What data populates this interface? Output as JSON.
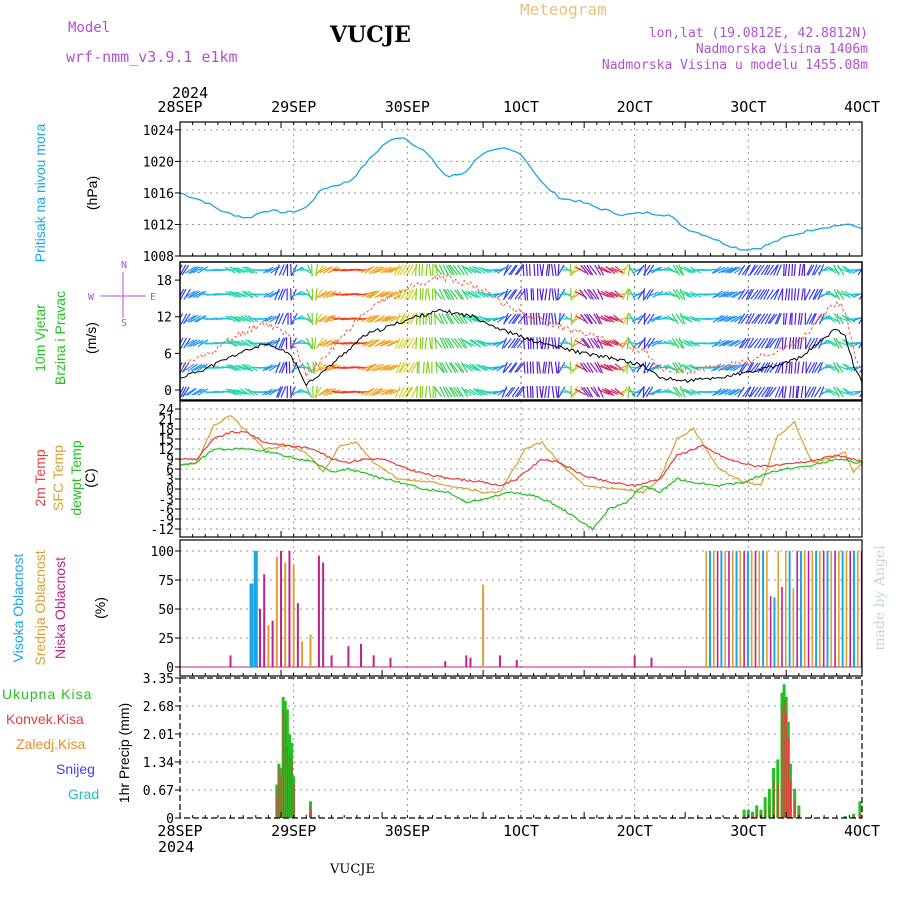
{
  "header": {
    "model_label": "Model",
    "model_name": "wrf-nmm_v3.9.1  e1km",
    "title": "VUCJE",
    "meteogram": "Meteogram",
    "lonlat": "lon,lat (19.0812E, 42.8812N)",
    "altitude": "Nadmorska Visina 1406m",
    "model_altitude": "Nadmorska Visina u modelu 1455.08m"
  },
  "footer": {
    "station": "VUCJE"
  },
  "credit": "made by Angel",
  "time_axis": {
    "year": "2024",
    "labels": [
      "28SEP",
      "29SEP",
      "30SEP",
      "1OCT",
      "2OCT",
      "3OCT",
      "4OCT"
    ]
  },
  "colors": {
    "pressure": "#1aa7e6",
    "temp2m": "#e83c3c",
    "sfc": "#d8a030",
    "dewpt": "#22c022",
    "high_cloud": "#1aa7e6",
    "mid_cloud": "#d8a030",
    "low_cloud": "#c0208c",
    "total_rain": "#22c022",
    "conv_rain": "#e83c3c",
    "frozen": "#e88a30",
    "snow": "#4040e0",
    "hail": "#20c0c0",
    "meteogram_title": "#e8c080",
    "model_text": "#b050d0"
  },
  "panels": {
    "pressure": {
      "ylabel": "Pritisak na nivou mora",
      "unit": "(hPa)",
      "ticks": [
        "1008",
        "1012",
        "1016",
        "1020",
        "1024"
      ]
    },
    "wind": {
      "ylabel1": "10m Vjetar",
      "ylabel2": "Brzina i Pravac",
      "unit": "(m/s)",
      "ticks": [
        "0",
        "6",
        "12",
        "18"
      ],
      "compass_w": "W",
      "compass_e": "E",
      "compass_n": "N",
      "compass_s": "S"
    },
    "temp": {
      "ylabel1": "2m Temp",
      "ylabel2": "SFC Temp",
      "ylabel3": "dewpt Temp",
      "unit": "(C)",
      "ticks": [
        "-12",
        "-9",
        "-6",
        "-3",
        "0",
        "3",
        "6",
        "9",
        "12",
        "15",
        "18",
        "21",
        "24"
      ]
    },
    "cloud": {
      "ylabel1": "Visoka Oblacnost",
      "ylabel2": "Srednja Oblacnost",
      "ylabel3": "Niska Oblacnost",
      "unit": "(%)",
      "ticks": [
        "0",
        "25",
        "50",
        "75",
        "100"
      ]
    },
    "precip": {
      "unit": "1hr Precip (mm)",
      "ticks": [
        "0",
        "0.67",
        "1.34",
        "2.01",
        "2.68",
        "3.35"
      ],
      "legend": [
        "Ukupna Kisa",
        "Konvek.Kisa",
        "Zaledj.Kisa",
        "Snijeg",
        "Grad"
      ]
    }
  },
  "chart_data": {
    "type": "line",
    "x_hours": [
      0,
      6,
      12,
      18,
      24,
      30,
      36,
      42,
      48,
      54,
      60,
      66,
      72,
      78,
      84,
      90,
      96,
      102,
      108,
      114,
      120,
      126,
      132,
      138,
      144,
      150,
      156,
      162,
      168,
      174,
      180
    ],
    "pressure_hpa": [
      1016,
      1015,
      1013,
      1013,
      1013.5,
      1016.5,
      1021,
      1023.2,
      1020,
      1018,
      1021.5,
      1021,
      1017,
      1015.2,
      1015,
      1013.5,
      1011.5,
      1011,
      1009.3,
      1008.8,
      1010.5,
      1011.5,
      1011.8,
      1011.5,
      1011.5,
      1011.5,
      1011.5,
      1011.5,
      1011.5,
      1011.5,
      1011.5
    ],
    "wind_speed_ms": [
      2,
      4,
      8,
      6,
      0,
      2,
      10,
      13,
      11,
      7,
      6,
      5,
      4,
      2,
      2,
      3,
      5,
      7,
      9,
      10,
      1,
      1,
      1,
      1,
      1,
      1,
      1,
      1,
      1,
      1,
      1
    ],
    "gust_ms": [
      3,
      5,
      11,
      8,
      1,
      3,
      13,
      17,
      14,
      9,
      8,
      7,
      5,
      3,
      3,
      4,
      6,
      9,
      12,
      14,
      1.5,
      1.5,
      1.5,
      1.5,
      1.5,
      1.5,
      1.5,
      1.5,
      1.5,
      1.5,
      1.5
    ],
    "temp2m_c": [
      8,
      16,
      13,
      10,
      5,
      3,
      1,
      3,
      2,
      4,
      8,
      10,
      3,
      8,
      5,
      8,
      9,
      10,
      6,
      7,
      8,
      8,
      8,
      8,
      8,
      8,
      8,
      8,
      8,
      8,
      8
    ],
    "sfc_temp_c": [
      7,
      21,
      12,
      13,
      2,
      1,
      -1,
      15,
      0,
      -1,
      18,
      0,
      17,
      6,
      6,
      9,
      10,
      11,
      6,
      7,
      7,
      7,
      7,
      7,
      7,
      7,
      7,
      7,
      7,
      7,
      7
    ],
    "dewpt_c": [
      6,
      11,
      10,
      8,
      3,
      1,
      -3,
      -4,
      -12,
      2,
      0,
      4,
      3,
      5,
      6,
      8,
      9,
      10,
      7,
      6,
      6,
      6,
      6,
      6,
      6,
      6,
      6,
      6,
      6,
      6,
      6
    ],
    "cloud_pct_note": "bars per hour",
    "precip_mm_peaks": [
      {
        "hour": 26,
        "value": 2.9
      },
      {
        "hour": 150,
        "value": 3.1
      }
    ]
  }
}
